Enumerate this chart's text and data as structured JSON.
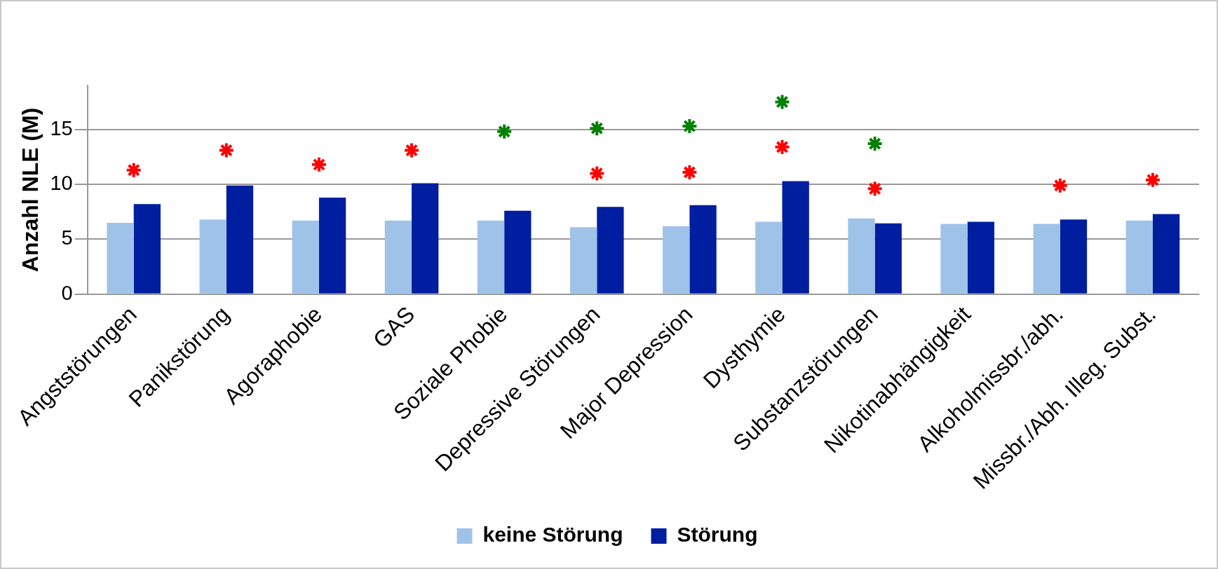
{
  "chart_data": {
    "type": "bar",
    "ylabel": "Anzahl NLE (M)",
    "categories": [
      "Angststörungen",
      "Panikstörung",
      "Agoraphobie",
      "GAS",
      "Soziale Phobie",
      "Depressive Störungen",
      "Major Depression",
      "Dysthymie",
      "Substanzstörungen",
      "Nikotinabhängigkeit",
      "Alkoholmissbr./abh.",
      "Missbr./Abh. Illeg. Subst."
    ],
    "series": [
      {
        "name": "keine Störung",
        "color": "#9fc2e8",
        "values": [
          6.5,
          6.8,
          6.7,
          6.7,
          6.7,
          6.1,
          6.2,
          6.6,
          6.9,
          6.4,
          6.4,
          6.7
        ]
      },
      {
        "name": "Störung",
        "color": "#001ea0",
        "values": [
          8.2,
          9.9,
          8.8,
          10.1,
          7.6,
          7.95,
          8.1,
          10.3,
          6.45,
          6.6,
          6.8,
          7.3
        ]
      },
      {
        "type": "scatter",
        "color": "#ff0000",
        "x": [
          "Angststörungen",
          "Panikstörung",
          "Agoraphobie",
          "GAS",
          "Depressive Störungen",
          "Major Depression",
          "Dysthymie",
          "Substanzstörungen",
          "Alkoholmissbr./abh.",
          "Missbr./Abh. Illeg. Subst."
        ],
        "values": [
          11.3,
          13.1,
          11.8,
          13.1,
          11.0,
          11.1,
          13.4,
          9.6,
          9.9,
          10.4
        ]
      },
      {
        "type": "scatter",
        "color": "#008000",
        "x": [
          "Soziale Phobie",
          "Depressive Störungen",
          "Major Depression",
          "Dysthymie",
          "Substanzstörungen"
        ],
        "values": [
          14.8,
          15.1,
          15.3,
          17.5,
          13.7
        ]
      }
    ],
    "ylim": [
      0,
      19
    ],
    "yticks": [
      0,
      5,
      10,
      15
    ],
    "grid": "y",
    "legend": "bottom",
    "marker": "cross"
  }
}
